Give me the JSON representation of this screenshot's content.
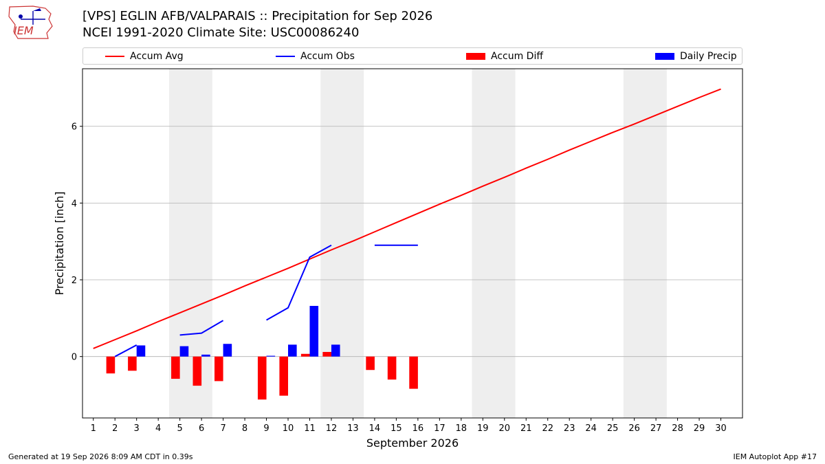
{
  "header": {
    "title_line1": "[VPS] EGLIN AFB/VALPARAIS :: Precipitation for Sep 2026",
    "title_line2": "NCEI 1991-2020 Climate Site: USC00086240",
    "logo_text": "IEM"
  },
  "footer": {
    "generated": "Generated at 19 Sep 2026 8:09 AM CDT in 0.39s",
    "app": "IEM Autoplot App #17"
  },
  "colors": {
    "accum_avg": "#ff0000",
    "accum_obs": "#0000ff",
    "accum_diff": "#ff0000",
    "daily_precip": "#0000ff",
    "weekend_shade": "#eeeeee",
    "grid": "#b0b0b0"
  },
  "chart_data": {
    "type": "bar",
    "xlabel": "September 2026",
    "ylabel": "Precipitation [inch]",
    "xlim": [
      0.5,
      31
    ],
    "ylim": [
      -1.6,
      7.5
    ],
    "y_ticks": [
      0,
      2,
      4,
      6
    ],
    "x_ticks": [
      1,
      2,
      3,
      4,
      5,
      6,
      7,
      8,
      9,
      10,
      11,
      12,
      13,
      14,
      15,
      16,
      17,
      18,
      19,
      20,
      21,
      22,
      23,
      24,
      25,
      26,
      27,
      28,
      29,
      30
    ],
    "grid": "horizontal",
    "legend": {
      "placement": "top",
      "entries": [
        {
          "label": "Accum Avg",
          "kind": "line",
          "color_key": "accum_avg"
        },
        {
          "label": "Accum Obs",
          "kind": "line",
          "color_key": "accum_obs"
        },
        {
          "label": "Accum Diff",
          "kind": "bar",
          "color_key": "accum_diff"
        },
        {
          "label": "Daily Precip",
          "kind": "bar",
          "color_key": "daily_precip"
        }
      ]
    },
    "weekend_shading": [
      [
        4.5,
        6.5
      ],
      [
        11.5,
        13.5
      ],
      [
        18.5,
        20.5
      ],
      [
        25.5,
        27.5
      ]
    ],
    "series": [
      {
        "name": "Accum Avg",
        "type": "line",
        "x": [
          1,
          2,
          3,
          4,
          5,
          6,
          7,
          8,
          9,
          10,
          11,
          12,
          13,
          14,
          15,
          16,
          17,
          18,
          19,
          20,
          21,
          22,
          23,
          24,
          25,
          26,
          27,
          28,
          29,
          30
        ],
        "values": [
          0.21,
          0.44,
          0.67,
          0.91,
          1.14,
          1.37,
          1.6,
          1.84,
          2.07,
          2.3,
          2.54,
          2.78,
          3.01,
          3.25,
          3.49,
          3.73,
          3.97,
          4.2,
          4.44,
          4.67,
          4.91,
          5.14,
          5.38,
          5.61,
          5.84,
          6.06,
          6.29,
          6.52,
          6.75,
          6.97
        ]
      },
      {
        "name": "Accum Obs",
        "type": "line",
        "x": [
          2,
          3,
          4,
          5,
          6,
          7,
          8,
          9,
          10,
          11,
          12,
          13,
          14,
          15,
          16
        ],
        "values": [
          0.0,
          0.3,
          null,
          0.56,
          0.61,
          0.94,
          null,
          0.95,
          1.27,
          2.59,
          2.9,
          null,
          2.9,
          2.9,
          2.9
        ]
      },
      {
        "name": "Accum Diff",
        "type": "bar",
        "x": [
          2,
          3,
          5,
          6,
          7,
          9,
          10,
          11,
          12,
          14,
          15,
          16
        ],
        "values": [
          -0.44,
          -0.37,
          -0.58,
          -0.76,
          -0.64,
          -1.12,
          -1.02,
          0.07,
          0.12,
          -0.35,
          -0.6,
          -0.84
        ]
      },
      {
        "name": "Daily Precip",
        "type": "bar",
        "x": [
          3,
          5,
          6,
          7,
          9,
          10,
          11,
          12
        ],
        "values": [
          0.29,
          0.27,
          0.05,
          0.33,
          0.02,
          0.31,
          1.32,
          0.31
        ]
      }
    ]
  }
}
